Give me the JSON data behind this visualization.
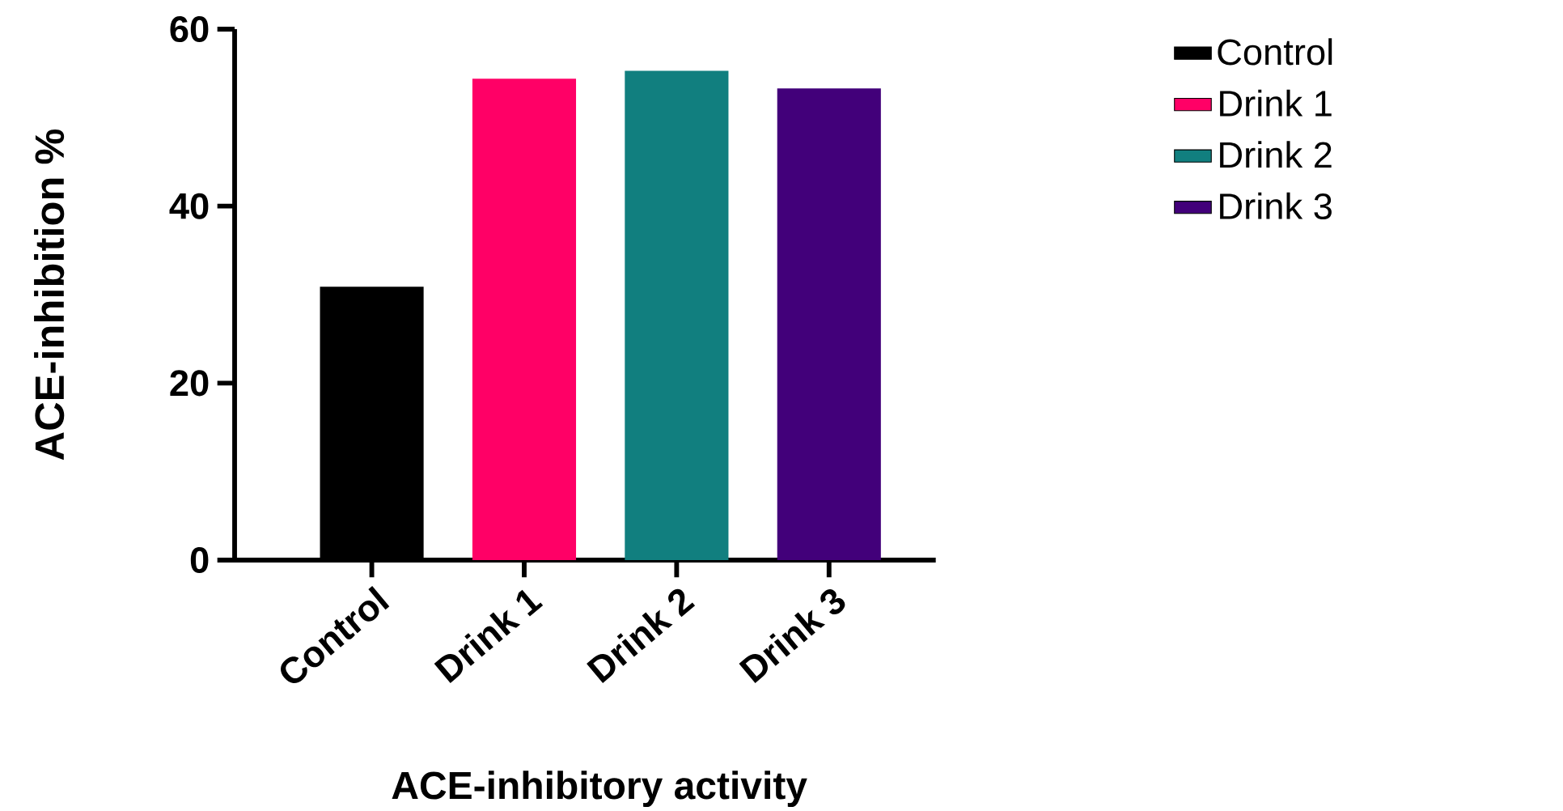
{
  "chart_data": {
    "type": "bar",
    "xlabel": "ACE-inhibitory activity",
    "ylabel": "ACE-inhibition %",
    "categories": [
      "Control",
      "Drink 1",
      "Drink 2",
      "Drink 3"
    ],
    "series": [
      {
        "name": "Control",
        "color": "#000000",
        "values": [
          30.9,
          null,
          null,
          null
        ]
      },
      {
        "name": "Drink 1",
        "color": "#ff0066",
        "values": [
          null,
          54.4,
          null,
          null
        ]
      },
      {
        "name": "Drink 2",
        "color": "#117f7f",
        "values": [
          null,
          null,
          55.3,
          null
        ]
      },
      {
        "name": "Drink 3",
        "color": "#42007a",
        "values": [
          null,
          null,
          null,
          53.3
        ]
      }
    ],
    "ylim": [
      0,
      60
    ],
    "yticks": [
      0,
      20,
      40,
      60
    ],
    "grid": false,
    "legend": "right"
  }
}
